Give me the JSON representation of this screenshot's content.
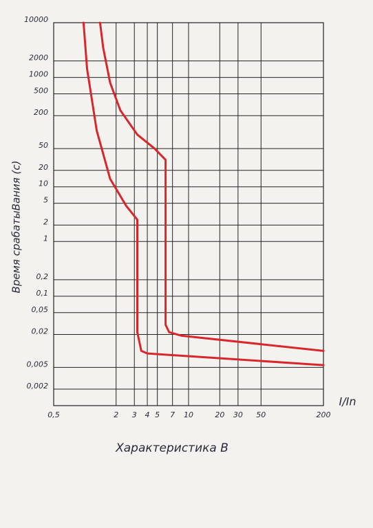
{
  "chart_data": {
    "type": "line",
    "title": "Характеристика B",
    "ylabel": "Время срабатыВания (с)",
    "xlabel": "I/In",
    "xscale": "log",
    "yscale": "log",
    "grid": true,
    "xlim": [
      0.5,
      200
    ],
    "ylim": [
      0.001,
      10000
    ],
    "xticks": [
      {
        "value": 0.5,
        "label": "0,5"
      },
      2,
      3,
      4,
      5,
      7,
      10,
      20,
      30,
      50,
      200
    ],
    "yticks": [
      {
        "value": 0.002,
        "label": "0,002"
      },
      {
        "value": 0.005,
        "label": "0,005"
      },
      {
        "value": 0.02,
        "label": "0,02"
      },
      {
        "value": 0.05,
        "label": "0,05"
      },
      {
        "value": 0.1,
        "label": "0,1"
      },
      {
        "value": 0.2,
        "label": "0,2"
      },
      1,
      2,
      5,
      10,
      20,
      50,
      200,
      500,
      1000,
      2000,
      10000
    ],
    "series": [
      {
        "color": "#d8262b",
        "x": [
          1.4,
          1.5,
          1.75,
          2.2,
          3.2,
          4.7,
          6,
          6,
          6.5,
          8.5,
          200
        ],
        "values": [
          10000,
          3500,
          800,
          250,
          90,
          50,
          31,
          0.03,
          0.022,
          0.019,
          0.01
        ]
      },
      {
        "color": "#d8262b",
        "x": [
          0.97,
          1.05,
          1.3,
          1.75,
          2.5,
          3.2,
          3.2,
          3.5,
          4,
          200
        ],
        "values": [
          10000,
          1440,
          107,
          14,
          4.5,
          2.5,
          0.022,
          0.01,
          0.009,
          0.0055
        ]
      }
    ]
  }
}
